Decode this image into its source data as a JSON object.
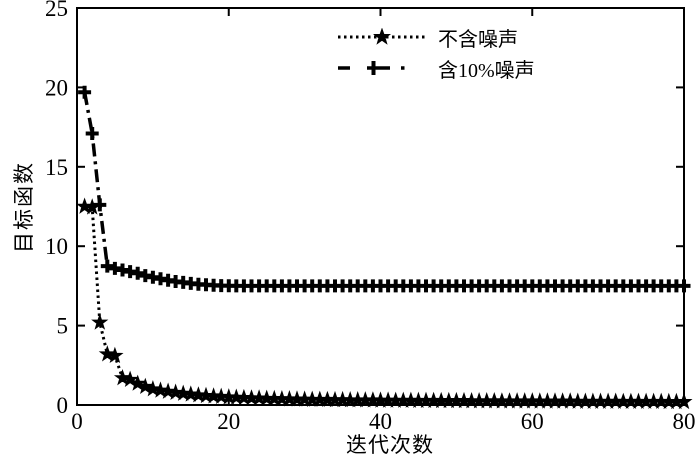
{
  "figure": {
    "background_color": "#ffffff",
    "axis_color": "#000000"
  },
  "chart_data": {
    "type": "line",
    "title": "",
    "xlabel": "迭代次数",
    "ylabel": "目标函数",
    "xlim": [
      0,
      80
    ],
    "ylim": [
      0,
      25
    ],
    "xticks": [
      0,
      20,
      40,
      60,
      80
    ],
    "yticks": [
      0,
      5,
      10,
      15,
      20,
      25
    ],
    "grid": false,
    "legend_position": "top-center",
    "x": [
      1,
      2,
      3,
      4,
      5,
      6,
      7,
      8,
      9,
      10,
      11,
      12,
      13,
      14,
      15,
      16,
      17,
      18,
      19,
      20,
      21,
      22,
      23,
      24,
      25,
      26,
      27,
      28,
      29,
      30,
      31,
      32,
      33,
      34,
      35,
      36,
      37,
      38,
      39,
      40,
      41,
      42,
      43,
      44,
      45,
      46,
      47,
      48,
      49,
      50,
      51,
      52,
      53,
      54,
      55,
      56,
      57,
      58,
      59,
      60,
      61,
      62,
      63,
      64,
      65,
      66,
      67,
      68,
      69,
      70,
      71,
      72,
      73,
      74,
      75,
      76,
      77,
      78,
      79,
      80
    ],
    "series": [
      {
        "name": "不含噪声",
        "line_style": "dotted",
        "marker": "star",
        "color": "#000000",
        "y": [
          12.5,
          12.45,
          5.2,
          3.2,
          3.1,
          1.7,
          1.6,
          1.35,
          1.15,
          1.0,
          0.92,
          0.85,
          0.78,
          0.72,
          0.67,
          0.62,
          0.58,
          0.55,
          0.52,
          0.49,
          0.47,
          0.45,
          0.43,
          0.42,
          0.4,
          0.39,
          0.38,
          0.37,
          0.36,
          0.35,
          0.34,
          0.34,
          0.33,
          0.32,
          0.32,
          0.31,
          0.31,
          0.3,
          0.3,
          0.29,
          0.29,
          0.28,
          0.28,
          0.28,
          0.27,
          0.27,
          0.27,
          0.26,
          0.26,
          0.26,
          0.26,
          0.25,
          0.25,
          0.25,
          0.25,
          0.24,
          0.24,
          0.24,
          0.24,
          0.24,
          0.23,
          0.23,
          0.23,
          0.23,
          0.23,
          0.22,
          0.22,
          0.22,
          0.22,
          0.22,
          0.22,
          0.21,
          0.21,
          0.21,
          0.21,
          0.21,
          0.21,
          0.2,
          0.2,
          0.2
        ]
      },
      {
        "name": "含10%噪声",
        "line_style": "dash-dot",
        "marker": "plus",
        "color": "#000000",
        "y": [
          19.7,
          17.1,
          12.6,
          8.75,
          8.6,
          8.5,
          8.4,
          8.3,
          8.15,
          8.05,
          7.95,
          7.85,
          7.78,
          7.72,
          7.66,
          7.61,
          7.57,
          7.54,
          7.52,
          7.51,
          7.5,
          7.5,
          7.5,
          7.5,
          7.5,
          7.5,
          7.5,
          7.5,
          7.5,
          7.5,
          7.5,
          7.5,
          7.5,
          7.5,
          7.5,
          7.5,
          7.5,
          7.5,
          7.5,
          7.5,
          7.5,
          7.5,
          7.5,
          7.5,
          7.5,
          7.5,
          7.5,
          7.5,
          7.5,
          7.5,
          7.5,
          7.5,
          7.5,
          7.5,
          7.5,
          7.5,
          7.5,
          7.5,
          7.5,
          7.5,
          7.5,
          7.5,
          7.5,
          7.5,
          7.5,
          7.5,
          7.5,
          7.5,
          7.5,
          7.5,
          7.5,
          7.5,
          7.5,
          7.5,
          7.5,
          7.5,
          7.5,
          7.5,
          7.5,
          7.5
        ]
      }
    ]
  }
}
